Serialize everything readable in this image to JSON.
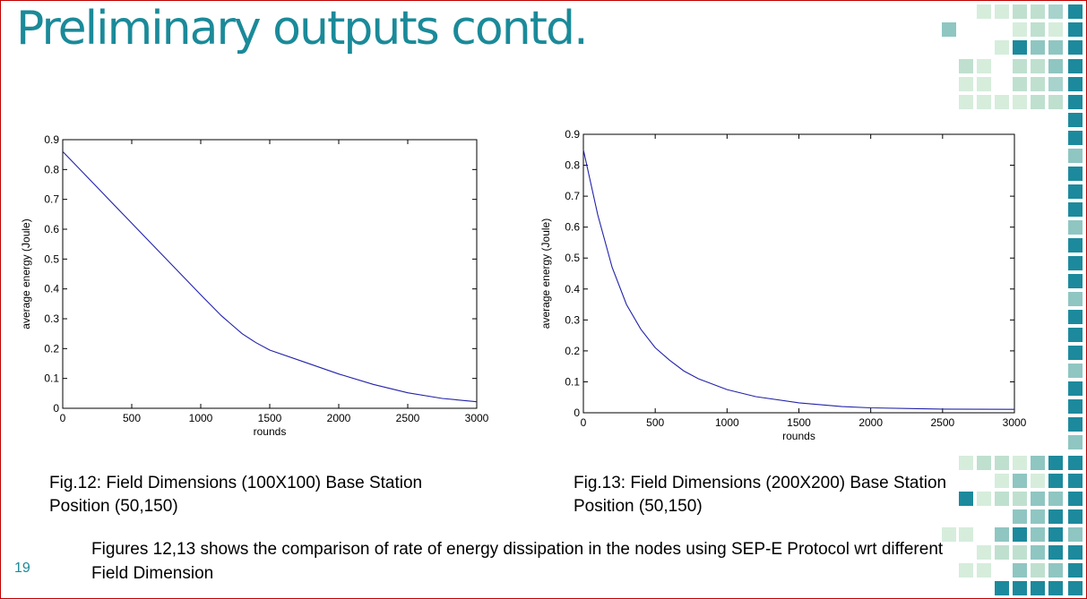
{
  "slide": {
    "title": "Preliminary outputs contd.",
    "page_number": "19",
    "summary": "Figures 12,13 shows the comparison of rate of energy dissipation in the nodes using SEP-E Protocol wrt different Field Dimension",
    "accent_color": "#1a8a99"
  },
  "chart_data": [
    {
      "type": "line",
      "title": "",
      "xlabel": "rounds",
      "ylabel": "average energy (Joule)",
      "xlim": [
        0,
        3000
      ],
      "ylim": [
        0,
        0.9
      ],
      "xticks": [
        0,
        500,
        1000,
        1500,
        2000,
        2500,
        3000
      ],
      "yticks": [
        0,
        0.1,
        0.2,
        0.3,
        0.4,
        0.5,
        0.6,
        0.7,
        0.8,
        0.9
      ],
      "series": [
        {
          "color": "#2222aa",
          "x": [
            0,
            250,
            500,
            750,
            1000,
            1150,
            1300,
            1400,
            1500,
            1750,
            2000,
            2250,
            2500,
            2750,
            3000
          ],
          "y": [
            0.86,
            0.74,
            0.62,
            0.5,
            0.38,
            0.31,
            0.25,
            0.22,
            0.195,
            0.155,
            0.115,
            0.08,
            0.052,
            0.033,
            0.022
          ]
        }
      ],
      "caption": "Fig.12: Field Dimensions (100X100) Base Station Position (50,150)"
    },
    {
      "type": "line",
      "title": "",
      "xlabel": "rounds",
      "ylabel": "average energy (Joule)",
      "xlim": [
        0,
        3000
      ],
      "ylim": [
        0,
        0.9
      ],
      "xticks": [
        0,
        500,
        1000,
        1500,
        2000,
        2500,
        3000
      ],
      "yticks": [
        0,
        0.1,
        0.2,
        0.3,
        0.4,
        0.5,
        0.6,
        0.7,
        0.8,
        0.9
      ],
      "series": [
        {
          "color": "#2222aa",
          "x": [
            0,
            100,
            200,
            300,
            400,
            500,
            600,
            700,
            800,
            1000,
            1200,
            1500,
            1800,
            2000,
            2500,
            3000
          ],
          "y": [
            0.85,
            0.64,
            0.47,
            0.35,
            0.27,
            0.21,
            0.17,
            0.135,
            0.11,
            0.075,
            0.052,
            0.032,
            0.02,
            0.016,
            0.012,
            0.011
          ]
        }
      ],
      "caption": "Fig.13: Field Dimensions (200X200) Base Station Position (50,150)"
    }
  ]
}
